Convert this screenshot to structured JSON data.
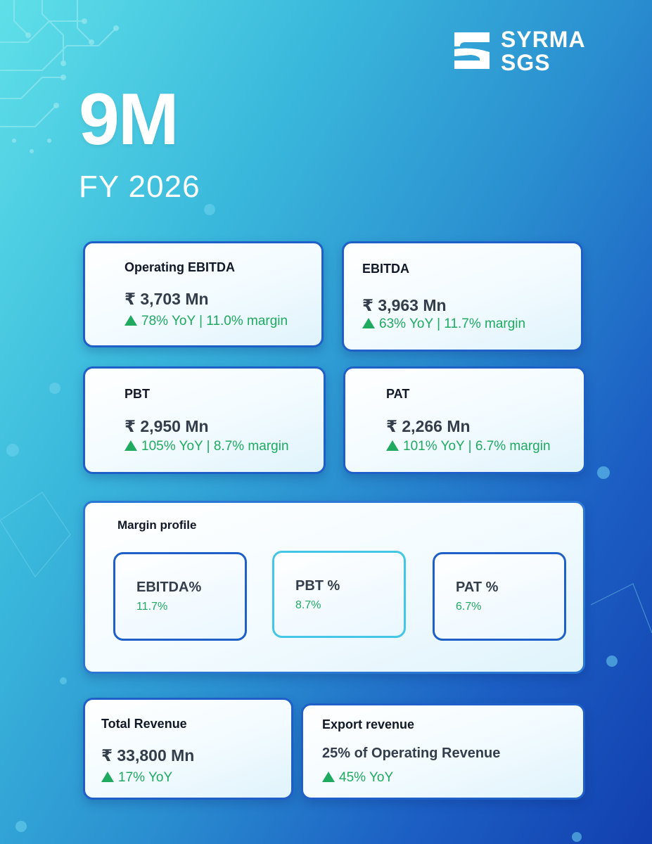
{
  "brand": {
    "line1": "SYRMA",
    "line2": "SGS"
  },
  "hero": {
    "period": "9M",
    "year": "FY 2026"
  },
  "cards": {
    "operating_ebitda": {
      "title": "Operating EBITDA",
      "value": "₹ 3,703 Mn",
      "delta": "78% YoY | 11.0% margin"
    },
    "ebitda": {
      "title": "EBITDA",
      "value": "₹ 3,963 Mn",
      "delta": "63% YoY | 11.7% margin"
    },
    "pbt": {
      "title": "PBT",
      "value": "₹ 2,950 Mn",
      "delta": "105% YoY | 8.7% margin"
    },
    "pat": {
      "title": "PAT",
      "value": "₹ 2,266 Mn",
      "delta": "101% YoY | 6.7% margin"
    },
    "total_revenue": {
      "title": "Total Revenue",
      "value": "₹ 33,800 Mn",
      "delta": "17% YoY"
    },
    "export_revenue": {
      "title": "Export revenue",
      "value": "25% of Operating Revenue",
      "delta": "45% YoY"
    }
  },
  "margin_profile": {
    "title": "Margin profile",
    "items": [
      {
        "label": "EBITDA%",
        "value": "11.7%"
      },
      {
        "label": "PBT %",
        "value": "8.7%"
      },
      {
        "label": "PAT %",
        "value": "6.7%"
      }
    ]
  },
  "colors": {
    "accent_green": "#1faa60",
    "card_border": "#1e5fc8",
    "background_start": "#5fe0e8",
    "background_end": "#123fae"
  },
  "icons": {
    "delta": "triangle-up-icon",
    "logo": "syrma-s-logo-icon"
  }
}
